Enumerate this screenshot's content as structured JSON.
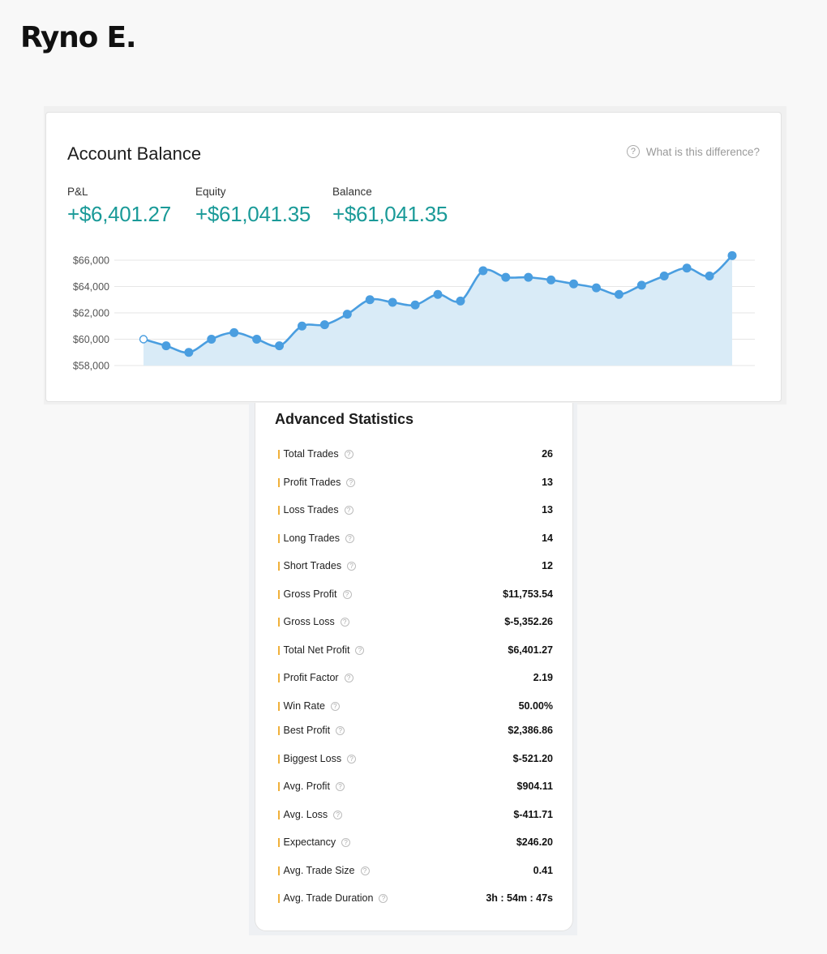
{
  "trader_name": "Ryno E.",
  "account": {
    "title": "Account Balance",
    "help_text": "What is this difference?",
    "help_icon": "question-circle-icon",
    "metrics": [
      {
        "label": "P&L",
        "value": "+$6,401.27"
      },
      {
        "label": "Equity",
        "value": "+$61,041.35"
      },
      {
        "label": "Balance",
        "value": "+$61,041.35"
      }
    ],
    "value_color": "#1a9a98"
  },
  "chart_data": {
    "type": "area",
    "yticks": [
      "$66,000",
      "$64,000",
      "$62,000",
      "$60,000",
      "$58,000"
    ],
    "ylim": [
      58000,
      66000
    ],
    "line_color": "#4a9ee0",
    "fill_color": "#d9ebf7",
    "values": [
      60000,
      59500,
      59000,
      60000,
      60500,
      60000,
      59500,
      61000,
      61100,
      61900,
      63000,
      62800,
      62600,
      63400,
      62900,
      65200,
      64700,
      64700,
      64500,
      64200,
      63900,
      63400,
      64100,
      64800,
      65400,
      64800,
      66350
    ]
  },
  "stats": {
    "title": "Advanced Statistics",
    "help_icon": "question-circle-icon",
    "accent_color": "#f0b03a",
    "rows": [
      {
        "label": "Total Trades",
        "value": "26"
      },
      {
        "label": "Profit Trades",
        "value": "13"
      },
      {
        "label": "Loss Trades",
        "value": "13"
      },
      {
        "label": "Long Trades",
        "value": "14"
      },
      {
        "label": "Short Trades",
        "value": "12"
      },
      {
        "label": "Gross Profit",
        "value": "$11,753.54"
      },
      {
        "label": "Gross Loss",
        "value": "$-5,352.26"
      },
      {
        "label": "Total Net Profit",
        "value": "$6,401.27"
      },
      {
        "label": "Profit Factor",
        "value": "2.19"
      },
      {
        "label": "Win Rate",
        "value": "50.00%"
      },
      {
        "label": "Best Profit",
        "value": "$2,386.86"
      },
      {
        "label": "Biggest Loss",
        "value": "$-521.20"
      },
      {
        "label": "Avg. Profit",
        "value": "$904.11"
      },
      {
        "label": "Avg. Loss",
        "value": "$-411.71"
      },
      {
        "label": "Expectancy",
        "value": "$246.20"
      },
      {
        "label": "Avg. Trade Size",
        "value": "0.41"
      },
      {
        "label": "Avg. Trade Duration",
        "value": "3h : 54m : 47s"
      }
    ]
  }
}
